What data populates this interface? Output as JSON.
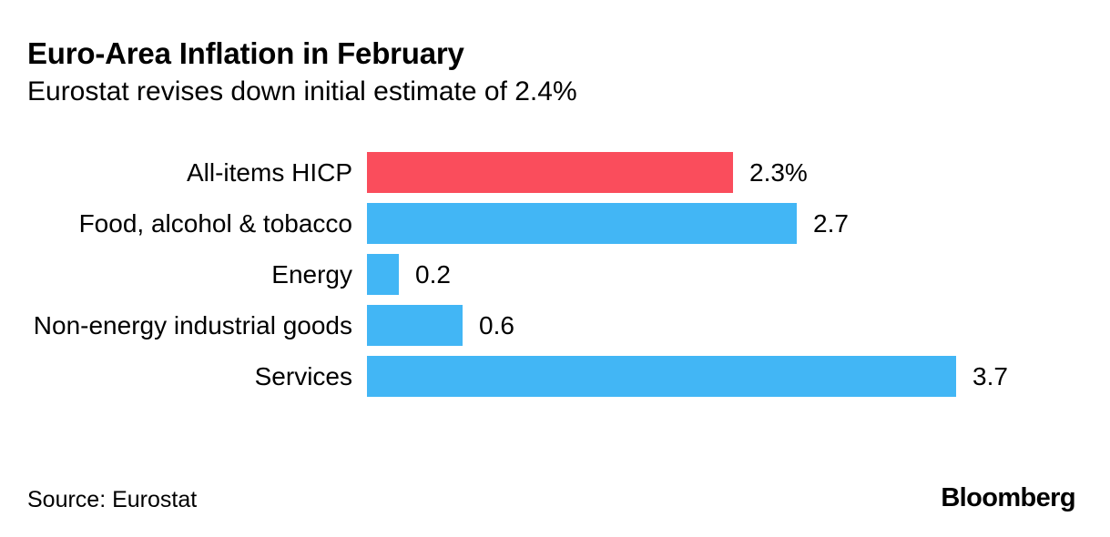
{
  "header": {
    "title": "Euro-Area Inflation in February",
    "subtitle": "Eurostat revises down initial estimate of 2.4%"
  },
  "chart_data": {
    "type": "bar",
    "orientation": "horizontal",
    "title": "Euro-Area Inflation in February",
    "subtitle": "Eurostat revises down initial estimate of 2.4%",
    "categories": [
      "All-items HICP",
      "Food, alcohol & tobacco",
      "Energy",
      "Non-energy industrial goods",
      "Services"
    ],
    "values": [
      2.3,
      2.7,
      0.2,
      0.6,
      3.7
    ],
    "value_labels": [
      "2.3%",
      "2.7",
      "0.2",
      "0.6",
      "3.7"
    ],
    "bar_colors": [
      "#FA4D5C",
      "#42B6F5",
      "#42B6F5",
      "#42B6F5",
      "#42B6F5"
    ],
    "xlim": [
      0,
      3.7
    ],
    "unit": "%",
    "grid": false,
    "legend": false,
    "axis_ticks": "none",
    "value_label_position": "right-of-bar"
  },
  "footer": {
    "source": "Source: Eurostat",
    "brand": "Bloomberg"
  },
  "colors": {
    "highlight_red": "#FA4D5C",
    "bar_blue": "#42B6F5",
    "text": "#000000",
    "background": "#FFFFFF"
  }
}
